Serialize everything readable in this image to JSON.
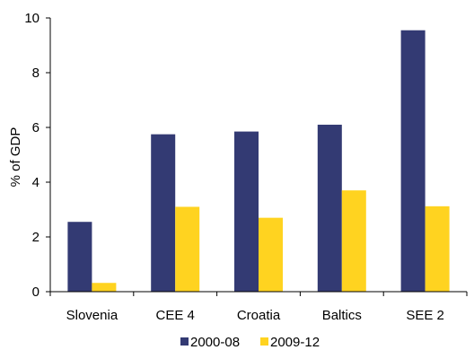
{
  "chart_data": {
    "type": "bar",
    "title": "",
    "xlabel": "",
    "ylabel": "% of GDP",
    "ylim": [
      0,
      10
    ],
    "yticks": [
      0,
      2,
      4,
      6,
      8,
      10
    ],
    "grid": false,
    "legend_position": "bottom",
    "categories": [
      "Slovenia",
      "CEE 4",
      "Croatia",
      "Baltics",
      "SEE 2"
    ],
    "series": [
      {
        "name": "2000-08",
        "color": "#333A73",
        "values": [
          2.55,
          5.75,
          5.85,
          6.1,
          9.55
        ]
      },
      {
        "name": "2009-12",
        "color": "#FFD320",
        "values": [
          0.32,
          3.1,
          2.7,
          3.7,
          3.12
        ]
      }
    ]
  }
}
